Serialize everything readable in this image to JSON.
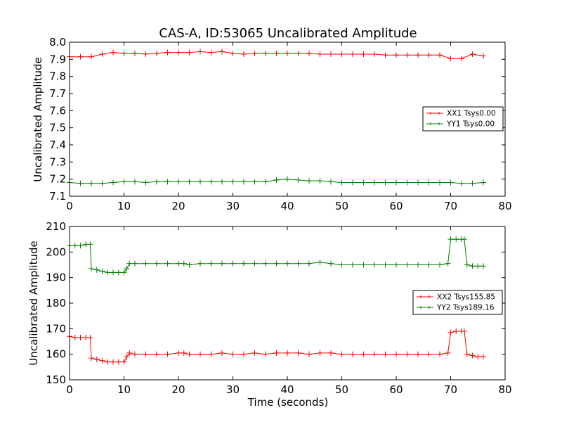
{
  "chart_data": [
    {
      "type": "line",
      "title": "CAS-A, ID:53065 Uncalibrated Amplitude",
      "xlabel": "",
      "ylabel": "Uncalibrated Amplitude",
      "xlim": [
        0,
        80
      ],
      "ylim": [
        7.1,
        8.0
      ],
      "xticks": [
        "0",
        "10",
        "20",
        "30",
        "40",
        "50",
        "60",
        "70",
        "80"
      ],
      "yticks": [
        "7.1",
        "7.2",
        "7.3",
        "7.4",
        "7.5",
        "7.6",
        "7.7",
        "7.8",
        "7.9",
        "8.0"
      ],
      "legend_position": "center-right",
      "marker": "+",
      "x": [
        0,
        2,
        4,
        6,
        8,
        10,
        12,
        14,
        16,
        18,
        20,
        22,
        24,
        26,
        28,
        30,
        32,
        34,
        36,
        38,
        40,
        42,
        44,
        46,
        48,
        50,
        52,
        54,
        56,
        58,
        60,
        62,
        64,
        66,
        68,
        70,
        72,
        74,
        76
      ],
      "series": [
        {
          "name": "XX1 Tsys0.00",
          "color": "#ff0000",
          "values": [
            7.915,
            7.915,
            7.915,
            7.93,
            7.94,
            7.935,
            7.935,
            7.93,
            7.935,
            7.94,
            7.94,
            7.94,
            7.945,
            7.94,
            7.945,
            7.935,
            7.93,
            7.935,
            7.935,
            7.935,
            7.935,
            7.935,
            7.935,
            7.93,
            7.93,
            7.93,
            7.93,
            7.93,
            7.93,
            7.925,
            7.925,
            7.925,
            7.925,
            7.925,
            7.925,
            7.905,
            7.905,
            7.93,
            7.92
          ]
        },
        {
          "name": "YY1 Tsys0.00",
          "color": "#008000",
          "values": [
            7.18,
            7.175,
            7.175,
            7.175,
            7.18,
            7.185,
            7.185,
            7.18,
            7.185,
            7.185,
            7.185,
            7.185,
            7.185,
            7.185,
            7.185,
            7.185,
            7.185,
            7.185,
            7.185,
            7.195,
            7.2,
            7.195,
            7.19,
            7.19,
            7.185,
            7.18,
            7.18,
            7.18,
            7.18,
            7.18,
            7.18,
            7.18,
            7.18,
            7.18,
            7.18,
            7.18,
            7.175,
            7.175,
            7.18
          ]
        }
      ]
    },
    {
      "type": "line",
      "title": "",
      "xlabel": "Time (seconds)",
      "ylabel": "Uncalibrated Amplitude",
      "xlim": [
        0,
        80
      ],
      "ylim": [
        150,
        210
      ],
      "xticks": [
        "0",
        "10",
        "20",
        "30",
        "40",
        "50",
        "60",
        "70",
        "80"
      ],
      "yticks": [
        "150",
        "160",
        "170",
        "180",
        "190",
        "200",
        "210"
      ],
      "legend_position": "center-right",
      "marker": "+",
      "x": [
        0,
        1,
        2,
        3,
        3.8,
        4,
        5,
        6,
        7,
        8,
        9,
        10,
        10.5,
        11,
        12,
        14,
        16,
        18,
        20,
        21,
        22,
        24,
        26,
        28,
        30,
        32,
        34,
        36,
        38,
        40,
        42,
        44,
        46,
        48,
        50,
        52,
        54,
        56,
        58,
        60,
        62,
        64,
        66,
        68,
        69.5,
        70,
        71,
        72,
        72.5,
        73,
        74,
        75,
        76
      ],
      "series": [
        {
          "name": "XX2 Tsys155.85",
          "color": "#ff0000",
          "values": [
            167,
            166.5,
            166.5,
            166.5,
            166.5,
            158.5,
            158,
            157.5,
            157,
            157,
            157,
            157,
            159,
            160.5,
            160,
            160,
            160,
            160,
            160.5,
            160.5,
            160,
            160,
            160,
            160.5,
            160,
            160,
            160.5,
            160,
            160.5,
            160.5,
            160.5,
            160,
            160.5,
            160.5,
            160,
            160,
            160,
            160,
            160,
            160,
            160,
            160,
            160,
            160,
            160.5,
            168.5,
            169,
            169,
            169,
            160,
            159.5,
            159,
            159
          ]
        },
        {
          "name": "YY2 Tsys189.16",
          "color": "#008000",
          "values": [
            202.5,
            202.5,
            202.5,
            203,
            203,
            193.5,
            193,
            192.5,
            192,
            192,
            192,
            192,
            193.5,
            195.5,
            195.5,
            195.5,
            195.5,
            195.5,
            195.5,
            195.5,
            195,
            195.5,
            195.5,
            195.5,
            195.5,
            195.5,
            195.5,
            195.5,
            195.5,
            195.5,
            195.5,
            195.5,
            196,
            195.5,
            195,
            195,
            195,
            195,
            195,
            195,
            195,
            195,
            195,
            195,
            195.5,
            205,
            205,
            205,
            205,
            195,
            194.5,
            194.5,
            194.5
          ]
        }
      ]
    }
  ]
}
